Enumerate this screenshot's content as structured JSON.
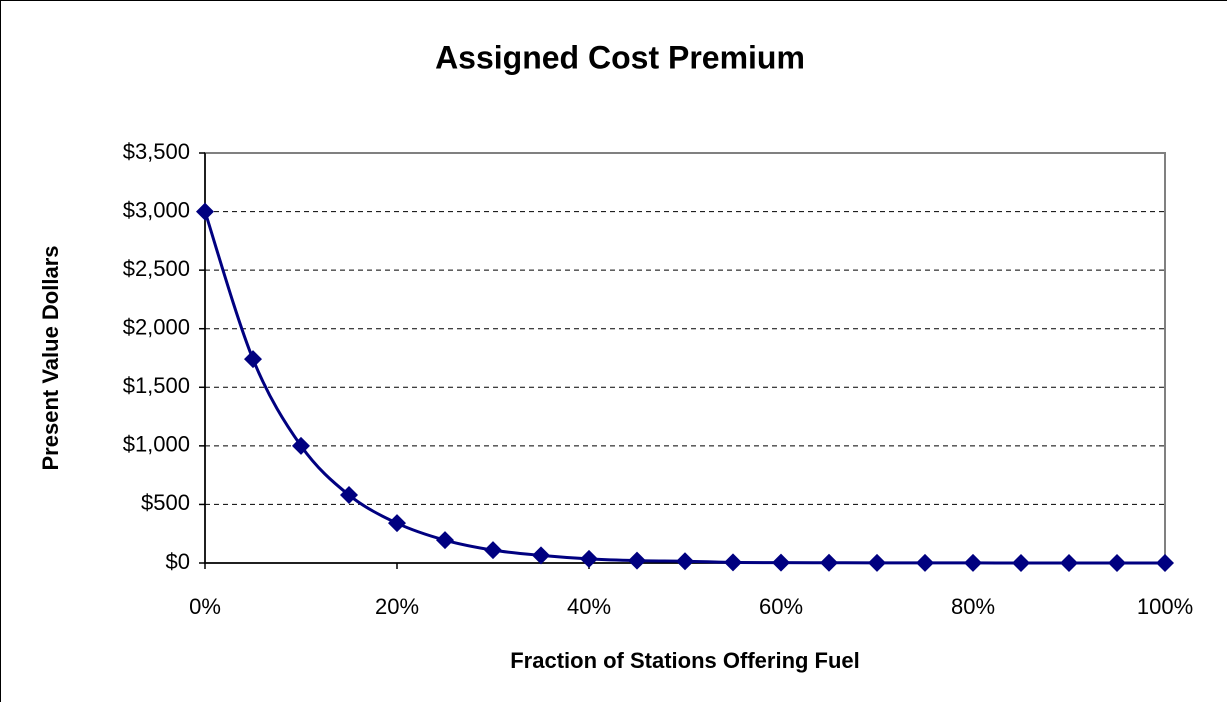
{
  "chart_data": {
    "type": "line",
    "title": "Assigned Cost Premium",
    "x_label": "Fraction of Stations Offering Fuel",
    "y_label": "Present Value Dollars",
    "x": [
      0,
      5,
      10,
      15,
      20,
      25,
      30,
      35,
      40,
      45,
      50,
      55,
      60,
      65,
      70,
      75,
      80,
      85,
      90,
      95,
      100
    ],
    "series": [
      {
        "name": "Assigned Cost Premium",
        "color": "#000080",
        "values": [
          3000,
          1740,
          1000,
          580,
          340,
          195,
          110,
          65,
          35,
          20,
          15,
          5,
          3,
          2,
          1,
          1,
          1,
          0,
          0,
          0,
          0
        ]
      }
    ],
    "xlim": [
      0,
      100
    ],
    "xticks": [
      {
        "value": 0,
        "label": "0%"
      },
      {
        "value": 20,
        "label": "20%"
      },
      {
        "value": 40,
        "label": "40%"
      },
      {
        "value": 60,
        "label": "60%"
      },
      {
        "value": 80,
        "label": "80%"
      },
      {
        "value": 100,
        "label": "100%"
      }
    ],
    "ylim": [
      0,
      3500
    ],
    "yticks": [
      {
        "value": 0,
        "label": "$0"
      },
      {
        "value": 500,
        "label": "$500"
      },
      {
        "value": 1000,
        "label": "$1,000"
      },
      {
        "value": 1500,
        "label": "$1,500"
      },
      {
        "value": 2000,
        "label": "$2,000"
      },
      {
        "value": 2500,
        "label": "$2,500"
      },
      {
        "value": 3000,
        "label": "$3,000"
      },
      {
        "value": 3500,
        "label": "$3,500"
      }
    ],
    "grid": true
  }
}
